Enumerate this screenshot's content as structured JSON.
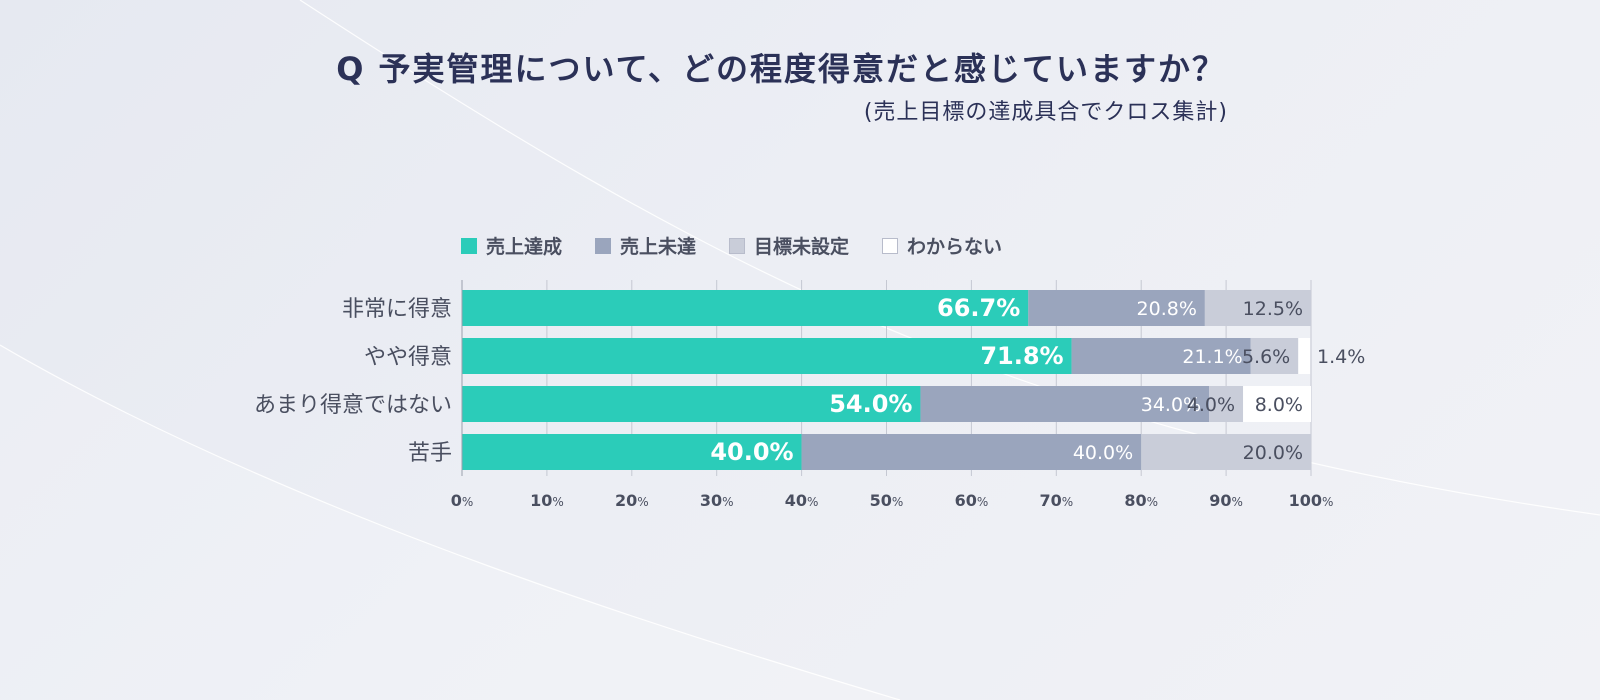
{
  "colors": {
    "achieved": "#2bccb9",
    "not_achieved": "#9aa5bd",
    "no_target": "#c9cdd9",
    "unknown": "#ffffff"
  },
  "chart_data": {
    "type": "bar",
    "orientation": "horizontal",
    "stacked": true,
    "title": "Q 予実管理について、どの程度得意だと感じていますか？",
    "subtitle": "(売上目標の達成具合でクロス集計)",
    "categories": [
      "非常に得意",
      "やや得意",
      "あまり得意ではない",
      "苦手"
    ],
    "series": [
      {
        "name": "売上達成",
        "values": [
          66.7,
          71.8,
          54.0,
          40.0
        ],
        "labels": [
          "66.7%",
          "71.8%",
          "54.0%",
          "40.0%"
        ]
      },
      {
        "name": "売上未達",
        "values": [
          20.8,
          21.1,
          34.0,
          40.0
        ],
        "labels": [
          "20.8%",
          "21.1%",
          "34.0%",
          "40.0%"
        ]
      },
      {
        "name": "目標未設定",
        "values": [
          12.5,
          5.6,
          4.0,
          20.0
        ],
        "labels": [
          "12.5%",
          "5.6%",
          "4.0%",
          "20.0%"
        ]
      },
      {
        "name": "わからない",
        "values": [
          0,
          1.4,
          8.0,
          0
        ],
        "labels": [
          "",
          "1.4%",
          "8.0%",
          ""
        ]
      }
    ],
    "x_ticks": [
      "0",
      "10",
      "20",
      "30",
      "40",
      "50",
      "60",
      "70",
      "80",
      "90",
      "100"
    ],
    "tick_unit": "%",
    "xlim": [
      0,
      100
    ],
    "grid": true,
    "legend_position": "top"
  }
}
